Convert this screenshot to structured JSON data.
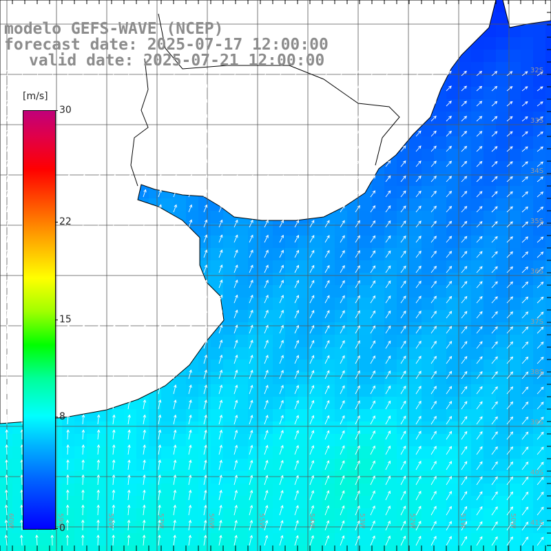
{
  "title": {
    "line1": "modelo GEFS-WAVE (NCEP)",
    "line2": "forecast date: 2025-07-17 12:00:00",
    "line3": "valid date: 2025-07-21 12:00:00"
  },
  "colorbar": {
    "units": "[m/s]",
    "ticks": [
      {
        "label": "30",
        "value": 30
      },
      {
        "label": "22",
        "value": 22
      },
      {
        "label": "15",
        "value": 15
      },
      {
        "label": "8",
        "value": 8
      },
      {
        "label": "0",
        "value": 0
      }
    ],
    "min": 0,
    "max": 30,
    "colors": [
      "#0000ff",
      "#00b4ff",
      "#00ffff",
      "#00ff00",
      "#ffff00",
      "#ff8000",
      "#ff0000",
      "#c0007a"
    ]
  },
  "map": {
    "lat_labels": [
      "32S",
      "33S",
      "34S",
      "35S",
      "36S",
      "37S",
      "38S",
      "39S",
      "40S",
      "41S"
    ],
    "lon_labels": [
      "60W",
      "59W",
      "58W",
      "57W",
      "56W",
      "55W",
      "54W",
      "53W",
      "52W",
      "51W",
      "50W"
    ],
    "land_color": "#ffffff",
    "grid_color": "#555555",
    "arrow_color": "#ffffff",
    "wind_speed_range_ms": [
      3,
      10
    ]
  }
}
